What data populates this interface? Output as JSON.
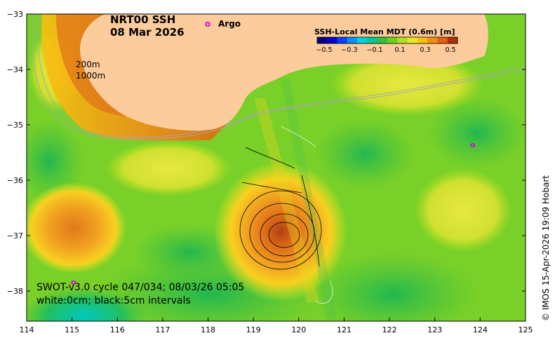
{
  "title": {
    "line1": "NRT00 SSH",
    "line2": "08 Mar 2026"
  },
  "legend": {
    "argo_marker": "o",
    "argo_label": "Argo",
    "argo_color": "#e000e0"
  },
  "isobaths": {
    "label_200": "200m",
    "label_1000": "1000m"
  },
  "colorbar": {
    "title": "SSH-Local Mean MDT (0.6m) [m]",
    "ticks": [
      "−0.5",
      "−0.3",
      "−0.1",
      "0.1",
      "0.3",
      "0.5"
    ],
    "colors": [
      "#000080",
      "#0000d0",
      "#0040ff",
      "#0090ff",
      "#00d0e0",
      "#00c890",
      "#30c040",
      "#70d020",
      "#b0e020",
      "#e8e820",
      "#f8c010",
      "#f09010",
      "#e06010",
      "#b03008"
    ]
  },
  "swot_note": {
    "line1": "SWOT-v3.0 cycle 047/034; 08/03/26 05:05",
    "line2": "white:0cm; black:5cm intervals"
  },
  "credit": "© IMOS 15-Apr-2026 19:09 Hobart",
  "axes": {
    "x_ticks": [
      "114",
      "115",
      "116",
      "117",
      "118",
      "119",
      "120",
      "121",
      "122",
      "123",
      "124",
      "125"
    ],
    "y_ticks": [
      "−33",
      "−34",
      "−35",
      "−36",
      "−37",
      "−38"
    ]
  },
  "colors": {
    "land": "#fccc9c",
    "background_field": "#78d028"
  }
}
